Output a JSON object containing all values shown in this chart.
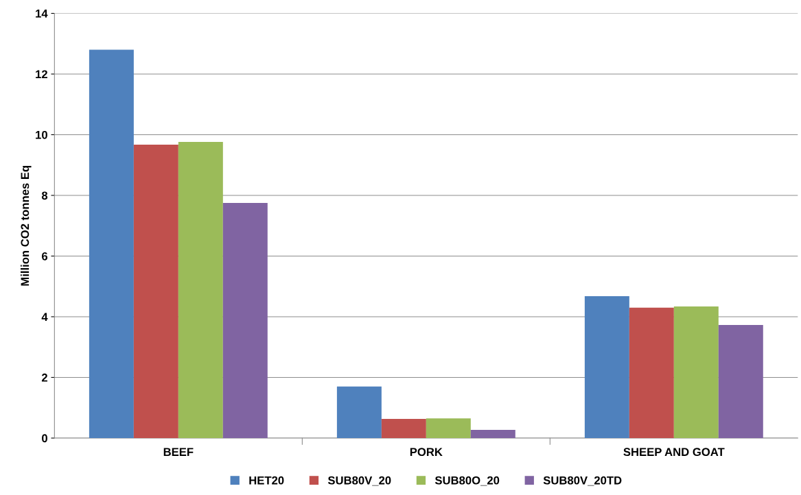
{
  "chart_data": {
    "type": "bar",
    "ylabel": "Million CO2 tonnes Eq",
    "categories": [
      "BEEF",
      "PORK",
      "SHEEP AND GOAT"
    ],
    "series": [
      {
        "name": "HET20",
        "color": "#4f81bd",
        "values": [
          12.8,
          1.7,
          4.68
        ]
      },
      {
        "name": "SUB80V_20",
        "color": "#c0504d",
        "values": [
          9.67,
          0.63,
          4.3
        ]
      },
      {
        "name": "SUB80O_20",
        "color": "#9bbb59",
        "values": [
          9.76,
          0.65,
          4.34
        ]
      },
      {
        "name": "SUB80V_20TD",
        "color": "#8064a2",
        "values": [
          7.75,
          0.27,
          3.73
        ]
      }
    ],
    "ylim": [
      0,
      14
    ],
    "yticks": [
      0,
      2,
      4,
      6,
      8,
      10,
      12,
      14
    ],
    "grid": "y",
    "legend": "bottom"
  }
}
